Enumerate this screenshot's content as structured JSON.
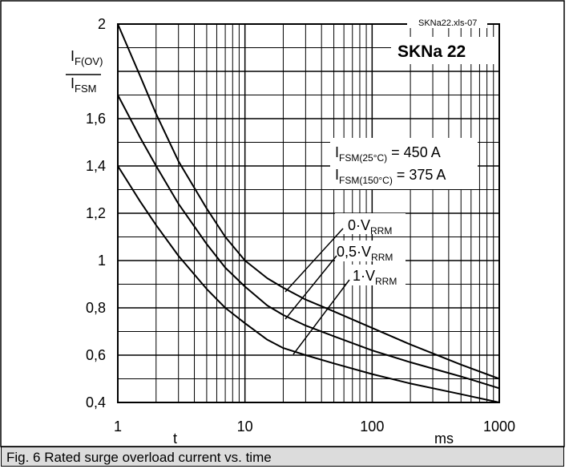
{
  "chart_data": {
    "type": "line",
    "title": "SKNa 22",
    "file_ref": "SKNa22.xls-07",
    "ylabel_num": "I",
    "ylabel_num_sub": "F(OV)",
    "ylabel_den": "I",
    "ylabel_den_sub": "FSM",
    "xlabel": "t",
    "xunit": "ms",
    "xscale": "log",
    "xlim": [
      1,
      1000
    ],
    "ylim": [
      0.4,
      2.0
    ],
    "x_ticks": [
      "1",
      "10",
      "100",
      "1000"
    ],
    "y_ticks": [
      "0,4",
      "0,6",
      "0,8",
      "1",
      "1,2",
      "1,4",
      "1,6",
      "2"
    ],
    "annotation_1": {
      "pre": "I",
      "sub": "FSM(25°C)",
      "post": " = 450 A"
    },
    "annotation_2": {
      "pre": "I",
      "sub": "FSM(150°C)",
      "post": " = 375 A"
    },
    "series": [
      {
        "name_pre": "0·V",
        "name_sub": "RRM",
        "x": [
          1,
          1.5,
          2,
          3,
          5,
          7,
          10,
          15,
          20,
          30,
          50,
          100,
          200,
          500,
          1000
        ],
        "y": [
          2.0,
          1.78,
          1.62,
          1.42,
          1.22,
          1.1,
          1.0,
          0.925,
          0.885,
          0.835,
          0.785,
          0.715,
          0.645,
          0.56,
          0.5
        ]
      },
      {
        "name_pre": "0,5·V",
        "name_sub": "RRM",
        "x": [
          1,
          1.5,
          2,
          3,
          5,
          7,
          10,
          15,
          20,
          30,
          50,
          100,
          200,
          500,
          1000
        ],
        "y": [
          1.7,
          1.52,
          1.4,
          1.24,
          1.07,
          0.97,
          0.89,
          0.81,
          0.77,
          0.725,
          0.68,
          0.62,
          0.57,
          0.51,
          0.46
        ]
      },
      {
        "name_pre": "1·V",
        "name_sub": "RRM",
        "x": [
          1,
          1.5,
          2,
          3,
          5,
          7,
          10,
          15,
          20,
          30,
          50,
          100,
          200,
          500,
          1000
        ],
        "y": [
          1.4,
          1.25,
          1.15,
          1.02,
          0.88,
          0.8,
          0.735,
          0.665,
          0.63,
          0.6,
          0.565,
          0.52,
          0.48,
          0.435,
          0.4
        ]
      }
    ]
  },
  "caption": "Fig. 6 Rated surge overload current vs. time"
}
